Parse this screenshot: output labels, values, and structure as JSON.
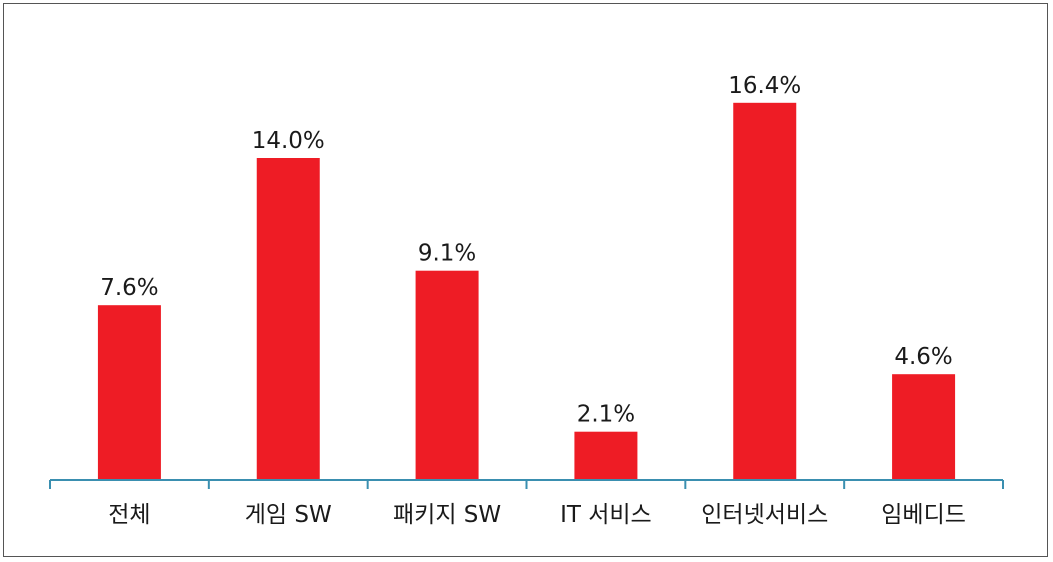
{
  "chart_data": {
    "type": "bar",
    "categories": [
      "전체",
      "게임 SW",
      "패키지 SW",
      "IT 서비스",
      "인터넷서비스",
      "임베디드"
    ],
    "values": [
      7.6,
      14.0,
      9.1,
      2.1,
      16.4,
      4.6
    ],
    "value_labels": [
      "7.6%",
      "14.0%",
      "9.1%",
      "2.1%",
      "16.4%",
      "4.6%"
    ],
    "ylim": [
      0,
      20
    ],
    "grid": false,
    "legend": "none",
    "colors": {
      "bar": "#ee1c25",
      "axis": "#3a8fb0"
    }
  }
}
